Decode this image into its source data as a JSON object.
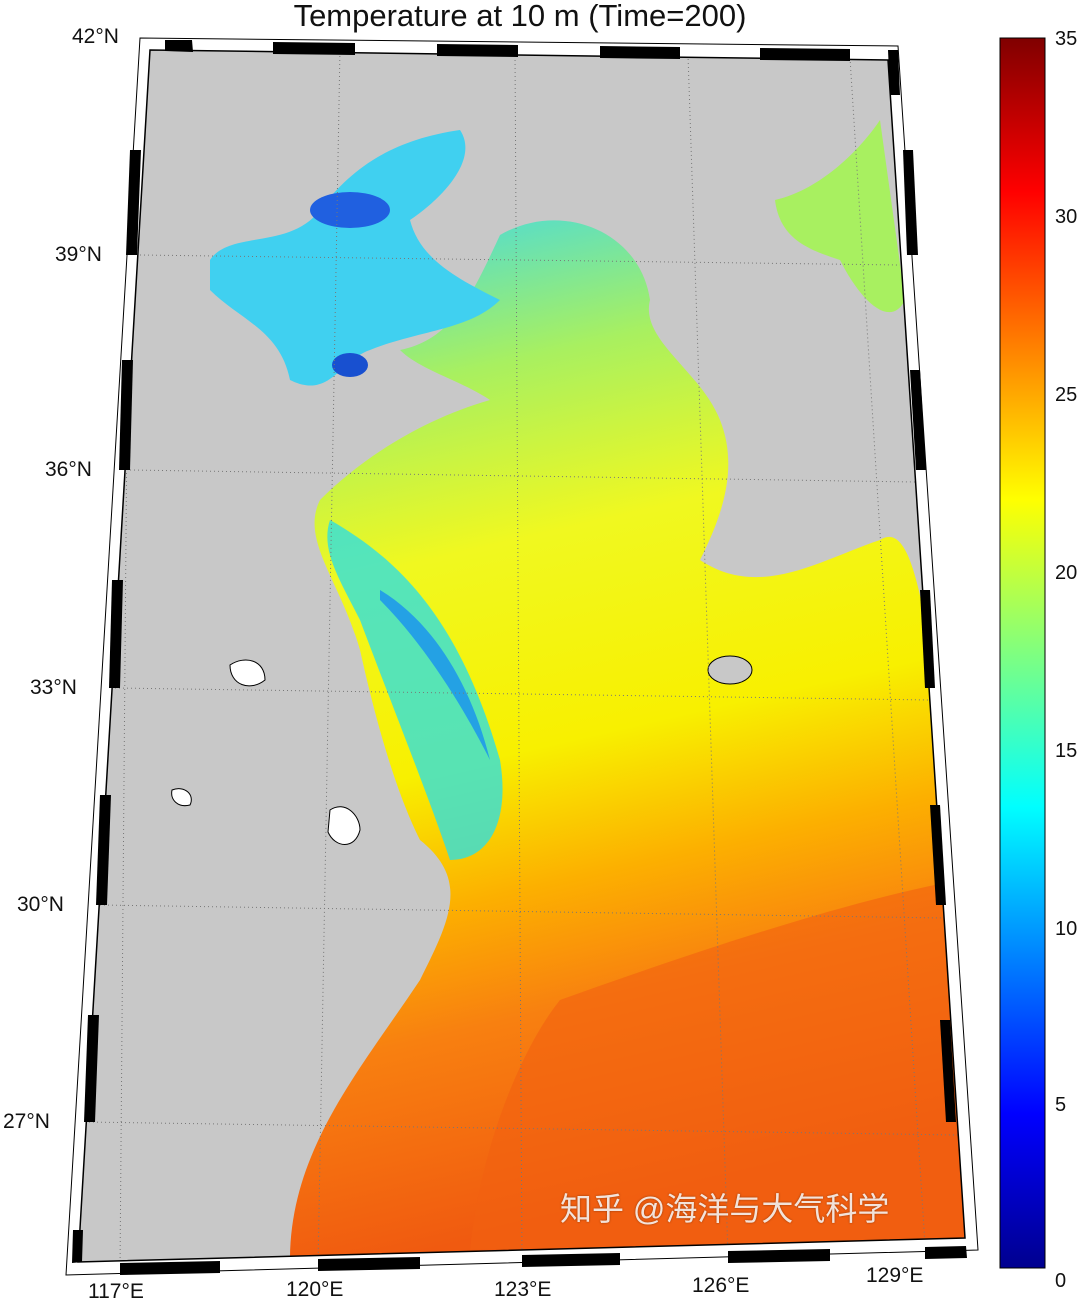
{
  "title": "Temperature at 10 m (Time=200)",
  "lat_labels": [
    "42°N",
    "39°N",
    "36°N",
    "33°N",
    "30°N",
    "27°N"
  ],
  "lon_labels": [
    "117°E",
    "120°E",
    "123°E",
    "126°E",
    "129°E"
  ],
  "colorbar": {
    "colormap": "jet",
    "range": [
      0,
      35
    ],
    "ticks": [
      "0",
      "5",
      "10",
      "15",
      "20",
      "25",
      "30",
      "35"
    ]
  },
  "colors": {
    "land": "#c8c8c8",
    "frame": "#000000"
  },
  "watermark": "知乎 @海洋与大气科学"
}
